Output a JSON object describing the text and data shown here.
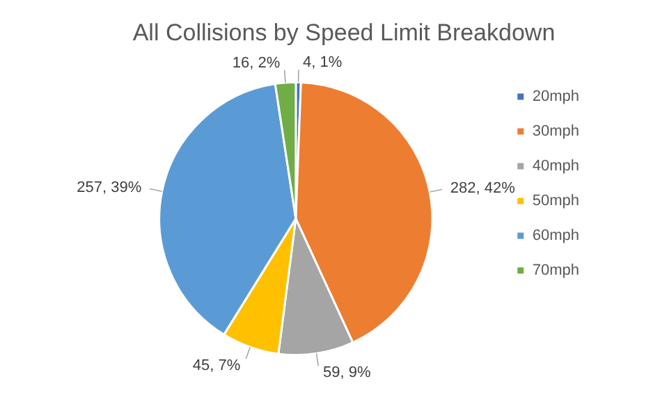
{
  "chart_data": {
    "type": "pie",
    "title": "All Collisions by Speed Limit Breakdown",
    "categories": [
      "20mph",
      "30mph",
      "40mph",
      "50mph",
      "60mph",
      "70mph"
    ],
    "values": [
      4,
      282,
      59,
      45,
      257,
      16
    ],
    "colors": [
      "#4472c4",
      "#ed7d31",
      "#a5a5a5",
      "#ffc000",
      "#5b9bd5",
      "#70ad47"
    ],
    "value_labels": [
      "4, 1%",
      "282, 42%",
      "59, 9%",
      "45, 7%",
      "257, 39%",
      "16, 2%"
    ],
    "legend": "right"
  }
}
